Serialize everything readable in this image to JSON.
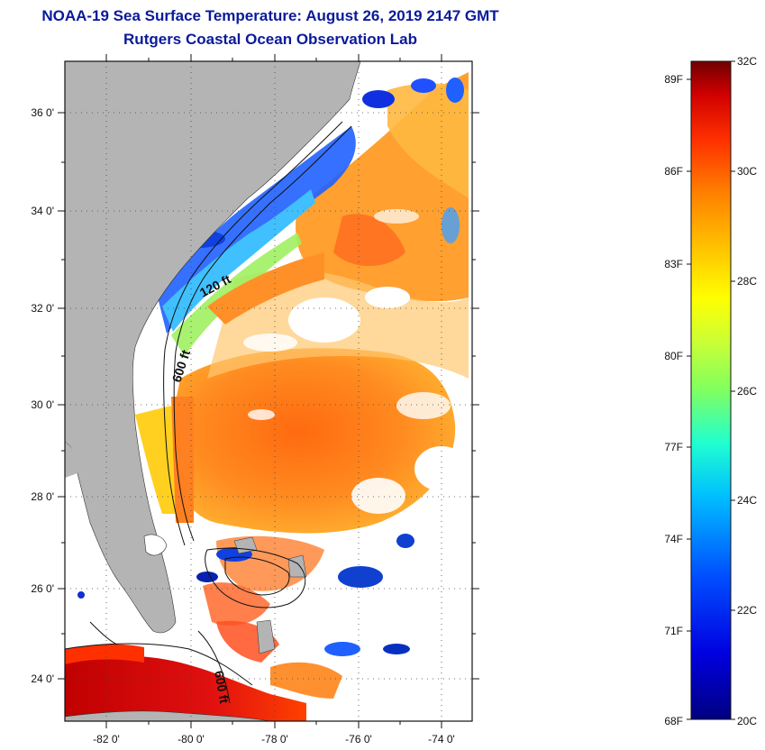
{
  "title": {
    "line1": "NOAA-19 Sea Surface Temperature:  August 26, 2019 2147 GMT",
    "line2": "Rutgers Coastal Ocean Observation Lab"
  },
  "map": {
    "lat_labels": [
      "36 0'",
      "34 0'",
      "32 0'",
      "30 0'",
      "28 0'",
      "26 0'",
      "24 0'"
    ],
    "lon_labels": [
      "-82 0'",
      "-80 0'",
      "-78 0'",
      "-76 0'",
      "-74 0'"
    ],
    "contour_labels": [
      "120 ft",
      "600 ft",
      "600 ft"
    ],
    "colors": {
      "land": "#b4b4b4",
      "cloud": "#ffffff"
    }
  },
  "colorbar": {
    "fahrenheit_labels": [
      "89F",
      "86F",
      "83F",
      "80F",
      "77F",
      "74F",
      "71F",
      "68F"
    ],
    "celsius_labels": [
      "32C",
      "30C",
      "28C",
      "26C",
      "24C",
      "22C",
      "20C"
    ],
    "colors": [
      "#000080",
      "#0000ff",
      "#0080ff",
      "#00e0ff",
      "#40ffa0",
      "#c0ff40",
      "#ffff00",
      "#ffc000",
      "#ff8000",
      "#ff2000",
      "#c00000",
      "#700000"
    ]
  }
}
